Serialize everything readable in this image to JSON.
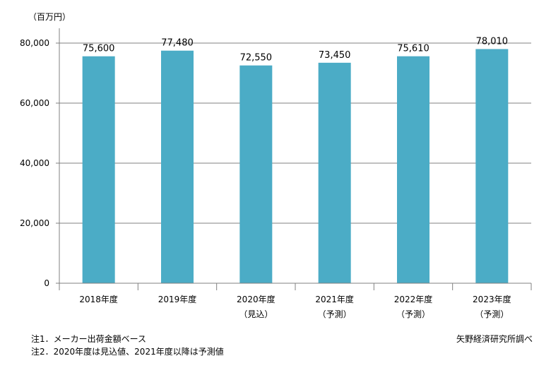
{
  "chart_data": {
    "type": "bar",
    "unit_label": "（百万円）",
    "categories": [
      {
        "line1": "2018年度",
        "line2": ""
      },
      {
        "line1": "2019年度",
        "line2": ""
      },
      {
        "line1": "2020年度",
        "line2": "（見込）"
      },
      {
        "line1": "2021年度",
        "line2": "（予測）"
      },
      {
        "line1": "2022年度",
        "line2": "（予測）"
      },
      {
        "line1": "2023年度",
        "line2": "（予測）"
      }
    ],
    "values": [
      75600,
      77480,
      72550,
      73450,
      75610,
      78010
    ],
    "value_labels": [
      "75,600",
      "77,480",
      "72,550",
      "73,450",
      "75,610",
      "78,010"
    ],
    "ylim": [
      0,
      80000
    ],
    "yticks": [
      0,
      20000,
      40000,
      60000,
      80000
    ],
    "ytick_labels": [
      "0",
      "20,000",
      "40,000",
      "60,000",
      "80,000"
    ],
    "grid": true,
    "bar_color": "#4BACC6",
    "grid_color": "#808080"
  },
  "notes": {
    "note1": "注1．メーカー出荷金額ベース",
    "note2": "注2．2020年度は見込値、2021年度以降は予測値",
    "source": "矢野経済研究所調べ"
  }
}
